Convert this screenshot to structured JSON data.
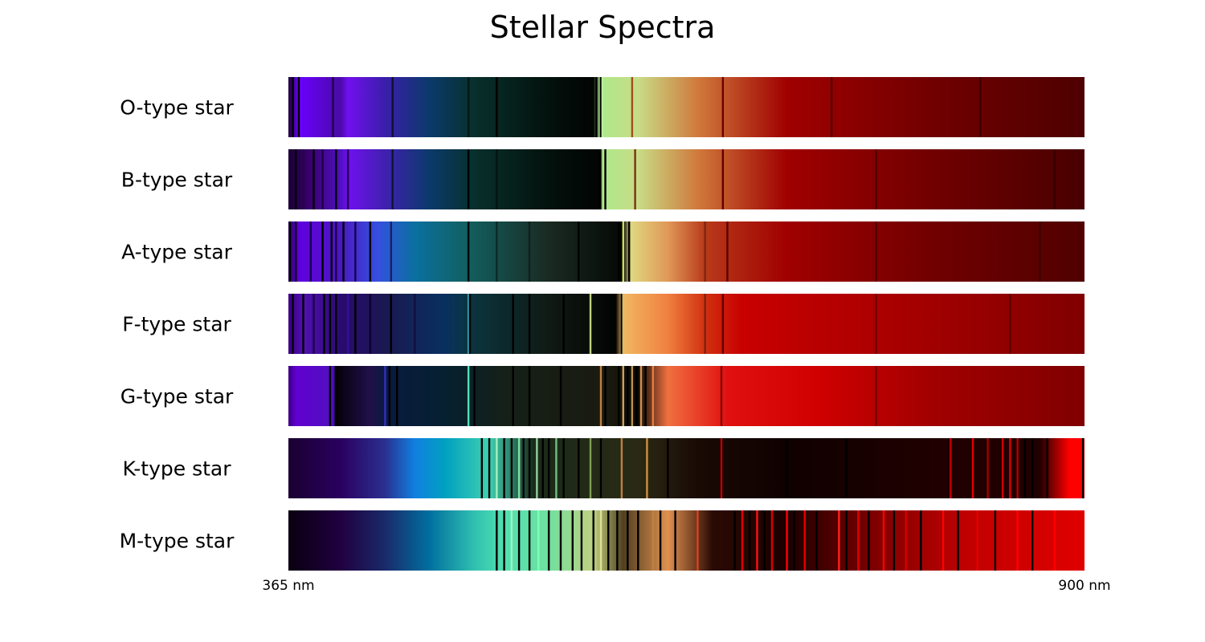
{
  "chart_data": {
    "type": "heatmap",
    "title": "Stellar Spectra",
    "xlabel": "",
    "ylabel": "",
    "x_unit": "nm",
    "xlim": [
      365,
      900
    ],
    "x_tick_values": [
      365,
      900
    ],
    "x_tick_labels": [
      "365 nm",
      "900 nm"
    ],
    "grid": false,
    "legend": "none",
    "series": [
      {
        "name": "O-type star",
        "stops": [
          [
            365,
            "#1a0033"
          ],
          [
            372,
            "#6a00ff"
          ],
          [
            400,
            "#4a0aa8"
          ],
          [
            405,
            "#7010ee"
          ],
          [
            430,
            "#3a1eaa"
          ],
          [
            460,
            "#0a3a6a"
          ],
          [
            490,
            "#08302c"
          ],
          [
            540,
            "#03110c"
          ],
          [
            570,
            "#020403"
          ],
          [
            575,
            "#aee88a"
          ],
          [
            600,
            "#c8dc86"
          ],
          [
            640,
            "#d07a3c"
          ],
          [
            700,
            "#a00000"
          ],
          [
            800,
            "#700000"
          ],
          [
            900,
            "#4e0000"
          ]
        ],
        "lines": [
          [
            368,
            "#000000"
          ],
          [
            372,
            "#000000"
          ],
          [
            395,
            "#1a0040"
          ],
          [
            435,
            "#101030"
          ],
          [
            486,
            "#041814"
          ],
          [
            505,
            "#000000"
          ],
          [
            572,
            "#000000"
          ],
          [
            575,
            "#000000"
          ],
          [
            576,
            "#b8f09a"
          ],
          [
            596,
            "#a05020"
          ],
          [
            657,
            "#6a0000"
          ],
          [
            730,
            "#500000"
          ],
          [
            830,
            "#400000"
          ]
        ]
      },
      {
        "name": "B-type star",
        "stops": [
          [
            365,
            "#1a0033"
          ],
          [
            380,
            "#3a0070"
          ],
          [
            400,
            "#5010c0"
          ],
          [
            405,
            "#7010ee"
          ],
          [
            430,
            "#4020b0"
          ],
          [
            460,
            "#0a3a6a"
          ],
          [
            490,
            "#08302c"
          ],
          [
            540,
            "#03110c"
          ],
          [
            575,
            "#020403"
          ],
          [
            576,
            "#aee88a"
          ],
          [
            600,
            "#c8dc86"
          ],
          [
            640,
            "#d07a3c"
          ],
          [
            700,
            "#a00000"
          ],
          [
            800,
            "#700000"
          ],
          [
            900,
            "#480000"
          ]
        ],
        "lines": [
          [
            370,
            "#000000"
          ],
          [
            375,
            "#2a0050"
          ],
          [
            382,
            "#000000"
          ],
          [
            388,
            "#1a0040"
          ],
          [
            397,
            "#000000"
          ],
          [
            405,
            "#200050"
          ],
          [
            435,
            "#0a1830"
          ],
          [
            486,
            "#000000"
          ],
          [
            505,
            "#041410"
          ],
          [
            574,
            "#000000"
          ],
          [
            578,
            "#000000"
          ],
          [
            598,
            "#803010"
          ],
          [
            657,
            "#600000"
          ],
          [
            760,
            "#500000"
          ],
          [
            880,
            "#380000"
          ]
        ]
      },
      {
        "name": "A-type star",
        "stops": [
          [
            365,
            "#2a0060"
          ],
          [
            372,
            "#6000dd"
          ],
          [
            400,
            "#4a18c0"
          ],
          [
            425,
            "#3550e0"
          ],
          [
            450,
            "#0a70a0"
          ],
          [
            485,
            "#126060"
          ],
          [
            540,
            "#1a2a22"
          ],
          [
            590,
            "#050805"
          ],
          [
            595,
            "#e0d880"
          ],
          [
            620,
            "#e09858"
          ],
          [
            645,
            "#b83a1a"
          ],
          [
            700,
            "#a00000"
          ],
          [
            800,
            "#700000"
          ],
          [
            900,
            "#500000"
          ]
        ],
        "lines": [
          [
            366,
            "#000000"
          ],
          [
            370,
            "#100020"
          ],
          [
            380,
            "#1a0050"
          ],
          [
            388,
            "#000000"
          ],
          [
            394,
            "#000000"
          ],
          [
            397,
            "#200040"
          ],
          [
            402,
            "#000000"
          ],
          [
            410,
            "#1a0050"
          ],
          [
            420,
            "#000000"
          ],
          [
            434,
            "#1a2060"
          ],
          [
            486,
            "#000000"
          ],
          [
            505,
            "#0a2a28"
          ],
          [
            527,
            "#102018"
          ],
          [
            560,
            "#000000"
          ],
          [
            587,
            "#000000"
          ],
          [
            589,
            "#000000"
          ],
          [
            590,
            "#c8e060"
          ],
          [
            594,
            "#000000"
          ],
          [
            645,
            "#7a2810"
          ],
          [
            660,
            "#5a0000"
          ],
          [
            760,
            "#500000"
          ],
          [
            870,
            "#400000"
          ]
        ]
      },
      {
        "name": "F-type star",
        "stops": [
          [
            365,
            "#3a0080"
          ],
          [
            375,
            "#5010b0"
          ],
          [
            400,
            "#2a0a70"
          ],
          [
            430,
            "#1a1850"
          ],
          [
            470,
            "#083060"
          ],
          [
            486,
            "#0a3540"
          ],
          [
            540,
            "#101a14"
          ],
          [
            585,
            "#020302"
          ],
          [
            590,
            "#f0b860"
          ],
          [
            620,
            "#f08040"
          ],
          [
            645,
            "#d03010"
          ],
          [
            670,
            "#c80000"
          ],
          [
            800,
            "#a00000"
          ],
          [
            900,
            "#800000"
          ]
        ],
        "lines": [
          [
            368,
            "#000000"
          ],
          [
            375,
            "#000000"
          ],
          [
            382,
            "#200050"
          ],
          [
            389,
            "#000000"
          ],
          [
            393,
            "#000000"
          ],
          [
            397,
            "#000000"
          ],
          [
            405,
            "#3010a0"
          ],
          [
            410,
            "#000000"
          ],
          [
            420,
            "#100030"
          ],
          [
            434,
            "#000000"
          ],
          [
            450,
            "#101040"
          ],
          [
            486,
            "#30a0b0"
          ],
          [
            487,
            "#000000"
          ],
          [
            516,
            "#000000"
          ],
          [
            527,
            "#000000"
          ],
          [
            550,
            "#000000"
          ],
          [
            568,
            "#c0d080"
          ],
          [
            589,
            "#000000"
          ],
          [
            590,
            "#d0c070"
          ],
          [
            645,
            "#802010"
          ],
          [
            657,
            "#600000"
          ],
          [
            760,
            "#700000"
          ],
          [
            850,
            "#600000"
          ]
        ]
      },
      {
        "name": "G-type star",
        "stops": [
          [
            365,
            "#3a0080"
          ],
          [
            370,
            "#6000d0"
          ],
          [
            395,
            "#5010c0"
          ],
          [
            397,
            "#05000a"
          ],
          [
            420,
            "#20104a"
          ],
          [
            430,
            "#0a1a40"
          ],
          [
            470,
            "#052030"
          ],
          [
            510,
            "#152018"
          ],
          [
            580,
            "#1a1a10"
          ],
          [
            600,
            "#0a0a04"
          ],
          [
            620,
            "#f07040"
          ],
          [
            660,
            "#e01010"
          ],
          [
            720,
            "#d00000"
          ],
          [
            800,
            "#a00000"
          ],
          [
            900,
            "#800000"
          ]
        ],
        "lines": [
          [
            393,
            "#000000"
          ],
          [
            397,
            "#000000"
          ],
          [
            430,
            "#3030c0"
          ],
          [
            433,
            "#000000"
          ],
          [
            438,
            "#000000"
          ],
          [
            486,
            "#50e0c0"
          ],
          [
            490,
            "#000000"
          ],
          [
            516,
            "#000000"
          ],
          [
            527,
            "#000000"
          ],
          [
            548,
            "#000000"
          ],
          [
            575,
            "#c08040"
          ],
          [
            578,
            "#000000"
          ],
          [
            587,
            "#000000"
          ],
          [
            590,
            "#d0a060"
          ],
          [
            593,
            "#000000"
          ],
          [
            596,
            "#c09050"
          ],
          [
            599,
            "#000000"
          ],
          [
            602,
            "#d09050"
          ],
          [
            605,
            "#000000"
          ],
          [
            610,
            "#e08040"
          ],
          [
            656,
            "#800000"
          ],
          [
            760,
            "#700000"
          ]
        ]
      },
      {
        "name": "K-type star",
        "stops": [
          [
            365,
            "#1a0030"
          ],
          [
            400,
            "#2a0060"
          ],
          [
            430,
            "#2a3090"
          ],
          [
            450,
            "#1080e0"
          ],
          [
            470,
            "#00a0c0"
          ],
          [
            500,
            "#40d0b0"
          ],
          [
            530,
            "#1a2a1a"
          ],
          [
            600,
            "#2a2a14"
          ],
          [
            640,
            "#1a0a04"
          ],
          [
            700,
            "#100000"
          ],
          [
            800,
            "#200000"
          ],
          [
            870,
            "#200000"
          ],
          [
            890,
            "#ff0000"
          ],
          [
            900,
            "#ff0000"
          ]
        ],
        "lines": [
          [
            495,
            "#000000"
          ],
          [
            500,
            "#000000"
          ],
          [
            505,
            "#a0f0c0"
          ],
          [
            510,
            "#000000"
          ],
          [
            515,
            "#000000"
          ],
          [
            520,
            "#80e0a0"
          ],
          [
            523,
            "#000000"
          ],
          [
            527,
            "#000000"
          ],
          [
            532,
            "#90d0a0"
          ],
          [
            536,
            "#000000"
          ],
          [
            540,
            "#000000"
          ],
          [
            545,
            "#70c080"
          ],
          [
            550,
            "#000000"
          ],
          [
            560,
            "#000000"
          ],
          [
            568,
            "#80a050"
          ],
          [
            575,
            "#000000"
          ],
          [
            589,
            "#c08040"
          ],
          [
            606,
            "#d09040"
          ],
          [
            620,
            "#000000"
          ],
          [
            656,
            "#c00000"
          ],
          [
            700,
            "#000000"
          ],
          [
            740,
            "#000000"
          ],
          [
            810,
            "#c00000"
          ],
          [
            825,
            "#e00000"
          ],
          [
            835,
            "#a00000"
          ],
          [
            845,
            "#d00000"
          ],
          [
            850,
            "#e00000"
          ],
          [
            855,
            "#b00000"
          ],
          [
            860,
            "#000000"
          ],
          [
            865,
            "#000000"
          ],
          [
            875,
            "#000000"
          ],
          [
            899,
            "#000000"
          ]
        ]
      },
      {
        "name": "M-type star",
        "stops": [
          [
            365,
            "#0a0010"
          ],
          [
            400,
            "#200040"
          ],
          [
            430,
            "#1a2a6a"
          ],
          [
            460,
            "#0070a0"
          ],
          [
            490,
            "#30c0b0"
          ],
          [
            510,
            "#50e0b0"
          ],
          [
            540,
            "#70e0a0"
          ],
          [
            570,
            "#c0d080"
          ],
          [
            590,
            "#504020"
          ],
          [
            620,
            "#e09050"
          ],
          [
            650,
            "#2a0a04"
          ],
          [
            700,
            "#1a0000"
          ],
          [
            760,
            "#800000"
          ],
          [
            820,
            "#c00000"
          ],
          [
            900,
            "#e00000"
          ]
        ],
        "lines": [
          [
            505,
            "#000000"
          ],
          [
            510,
            "#000000"
          ],
          [
            515,
            "#a0f0c0"
          ],
          [
            520,
            "#000000"
          ],
          [
            527,
            "#000000"
          ],
          [
            533,
            "#80ffb0"
          ],
          [
            540,
            "#000000"
          ],
          [
            548,
            "#000000"
          ],
          [
            556,
            "#000000"
          ],
          [
            562,
            "#000000"
          ],
          [
            570,
            "#000000"
          ],
          [
            575,
            "#e0e090"
          ],
          [
            580,
            "#000000"
          ],
          [
            586,
            "#000000"
          ],
          [
            593,
            "#000000"
          ],
          [
            600,
            "#000000"
          ],
          [
            610,
            "#c08040"
          ],
          [
            615,
            "#000000"
          ],
          [
            625,
            "#000000"
          ],
          [
            640,
            "#e04020"
          ],
          [
            665,
            "#000000"
          ],
          [
            670,
            "#e00000"
          ],
          [
            675,
            "#000000"
          ],
          [
            680,
            "#ff1010"
          ],
          [
            685,
            "#000000"
          ],
          [
            690,
            "#e00000"
          ],
          [
            700,
            "#ff0000"
          ],
          [
            705,
            "#000000"
          ],
          [
            712,
            "#e00000"
          ],
          [
            720,
            "#000000"
          ],
          [
            735,
            "#ff2020"
          ],
          [
            740,
            "#000000"
          ],
          [
            748,
            "#e00000"
          ],
          [
            755,
            "#000000"
          ],
          [
            765,
            "#ff0000"
          ],
          [
            772,
            "#000000"
          ],
          [
            780,
            "#d00000"
          ],
          [
            790,
            "#000000"
          ],
          [
            805,
            "#ff0000"
          ],
          [
            815,
            "#000000"
          ],
          [
            828,
            "#e00000"
          ],
          [
            840,
            "#000000"
          ],
          [
            855,
            "#ff0000"
          ],
          [
            865,
            "#000000"
          ],
          [
            880,
            "#ff0000"
          ]
        ]
      }
    ]
  }
}
